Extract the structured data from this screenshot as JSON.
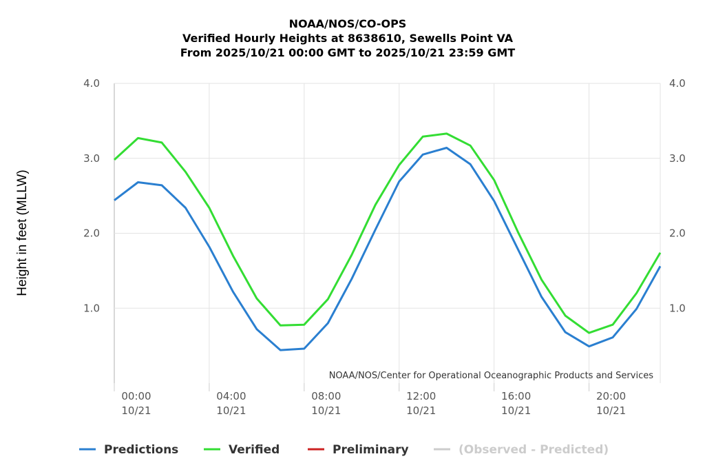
{
  "chart_data": {
    "type": "line",
    "title": [
      "NOAA/NOS/CO-OPS",
      "Verified Hourly Heights at 8638610, Sewells Point VA",
      "From 2025/10/21 00:00 GMT to 2025/10/21 23:59 GMT"
    ],
    "ylabel": "Height in feet (MLLW)",
    "ylim": [
      0,
      4
    ],
    "yticks": [
      "1.0",
      "2.0",
      "3.0",
      "4.0"
    ],
    "x": [
      "00:00",
      "01:00",
      "02:00",
      "03:00",
      "04:00",
      "05:00",
      "06:00",
      "07:00",
      "08:00",
      "09:00",
      "10:00",
      "11:00",
      "12:00",
      "13:00",
      "14:00",
      "15:00",
      "16:00",
      "17:00",
      "18:00",
      "19:00",
      "20:00",
      "21:00",
      "22:00",
      "23:00"
    ],
    "xticks": [
      {
        "time": "00:00",
        "date": "10/21",
        "hour": 0
      },
      {
        "time": "04:00",
        "date": "10/21",
        "hour": 4
      },
      {
        "time": "08:00",
        "date": "10/21",
        "hour": 8
      },
      {
        "time": "12:00",
        "date": "10/21",
        "hour": 12
      },
      {
        "time": "16:00",
        "date": "10/21",
        "hour": 16
      },
      {
        "time": "20:00",
        "date": "10/21",
        "hour": 20
      }
    ],
    "grid": true,
    "credit": "NOAA/NOS/Center for Operational Oceanographic Products and Services",
    "series": [
      {
        "name": "Predictions",
        "color": "#2a7fd0",
        "values": [
          2.44,
          2.68,
          2.64,
          2.34,
          1.82,
          1.22,
          0.72,
          0.44,
          0.46,
          0.8,
          1.39,
          2.05,
          2.69,
          3.05,
          3.14,
          2.92,
          2.43,
          1.79,
          1.15,
          0.68,
          0.49,
          0.61,
          0.99,
          1.56
        ]
      },
      {
        "name": "Verified",
        "color": "#33dd33",
        "values": [
          2.98,
          3.27,
          3.21,
          2.82,
          2.34,
          1.7,
          1.13,
          0.77,
          0.78,
          1.12,
          1.71,
          2.38,
          2.91,
          3.29,
          3.33,
          3.17,
          2.71,
          2.02,
          1.38,
          0.9,
          0.67,
          0.78,
          1.2,
          1.74
        ]
      }
    ],
    "legend": {
      "placement": "bottom",
      "items": [
        {
          "label": "Predictions",
          "color": "#2a7fd0",
          "active": true
        },
        {
          "label": "Verified",
          "color": "#33dd33",
          "active": true
        },
        {
          "label": "Preliminary",
          "color": "#cc2222",
          "active": true
        },
        {
          "label": "(Observed - Predicted)",
          "color": "#cccccc",
          "active": false
        }
      ]
    }
  }
}
